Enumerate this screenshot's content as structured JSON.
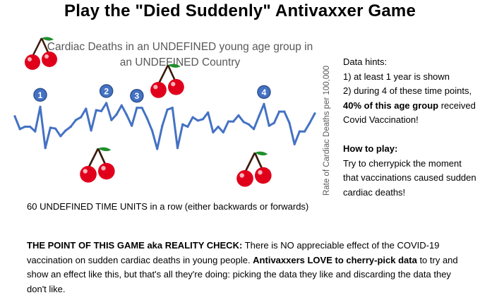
{
  "title": "Play the \"Died Suddenly\" Antivaxxer Game",
  "hints": {
    "heading": "Data hints:",
    "line1": "1) at least 1 year is shown",
    "line2_a": "2) during 4 of these time points, ",
    "line2_bold": "40% of this age group",
    "line2_b": " received Covid Vaccination!",
    "howto_heading": "How to play:",
    "howto_text": "Try to cherrypick the moment that vaccinations caused sudden cardiac deaths!"
  },
  "point": {
    "bold1": "THE POINT OF THIS GAME aka REALITY CHECK:",
    "text1": " There is NO appreciable effect of the COVID-19 vaccination on sudden cardiac deaths in young people. ",
    "bold2": "Antivaxxers LOVE to cherry-pick data",
    "text2": " to try and show an effect like this, but that's all they're doing: picking the data they like and discarding the data they don't like."
  },
  "colors": {
    "line": "#4472c4",
    "marker_fill": "#4472c4",
    "marker_stroke": "#2f528f",
    "cherry": "#e0001b",
    "stem": "#3a1a0a",
    "leaf": "#1f8f2e",
    "axis_text": "#595959"
  },
  "icons": [
    "cherry-icon"
  ],
  "chart_data": {
    "type": "line",
    "title": "Cardiac Deaths in an UNDEFINED young age group in an UNDEFINED Country",
    "xlabel": "60 UNDEFINED TIME UNITS in a row (either backwards or forwards)",
    "ylabel": "Rate of Cardiac Deaths per 100,000",
    "x_count": 60,
    "ylim": [
      0,
      1
    ],
    "grid": false,
    "legend": "none",
    "values": [
      0.72,
      0.45,
      0.5,
      0.5,
      0.4,
      0.92,
      0.05,
      0.48,
      0.46,
      0.3,
      0.42,
      0.5,
      0.64,
      0.7,
      0.88,
      0.42,
      0.85,
      0.83,
      1.0,
      0.64,
      0.76,
      0.95,
      0.75,
      0.52,
      0.9,
      0.9,
      0.68,
      0.42,
      0.03,
      0.52,
      0.86,
      0.9,
      0.05,
      0.55,
      0.5,
      0.7,
      0.63,
      0.66,
      0.8,
      0.38,
      0.5,
      0.38,
      0.61,
      0.61,
      0.74,
      0.6,
      0.55,
      0.45,
      0.72,
      0.98,
      0.52,
      0.58,
      0.82,
      0.82,
      0.58,
      0.13,
      0.4,
      0.4,
      0.58,
      0.78
    ],
    "markers": [
      {
        "label": "1",
        "index": 5
      },
      {
        "label": "2",
        "index": 18
      },
      {
        "label": "3",
        "index": 24
      },
      {
        "label": "4",
        "index": 49
      }
    ]
  }
}
